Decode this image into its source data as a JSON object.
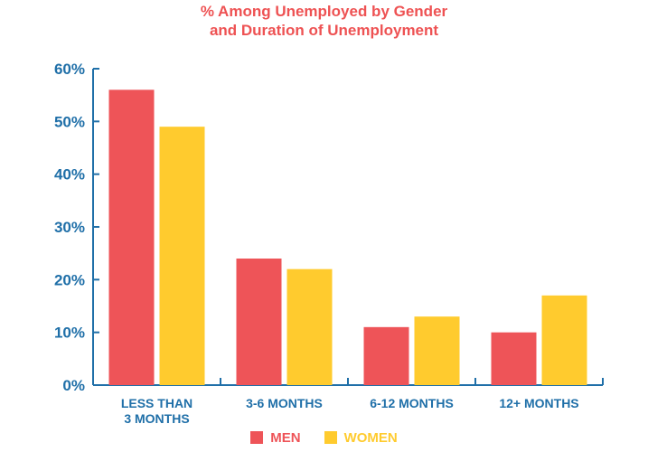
{
  "chart_data": {
    "type": "bar",
    "title": "% Among Unemployed by Gender and Duration of Unemployment",
    "title_lines": [
      "% Among Unemployed by Gender",
      "and Duration of Unemployment"
    ],
    "categories": [
      "LESS THAN 3 MONTHS",
      "3-6 MONTHS",
      "6-12 MONTHS",
      "12+ MONTHS"
    ],
    "category_lines": [
      [
        "LESS THAN",
        "3 MONTHS"
      ],
      [
        "3-6 MONTHS"
      ],
      [
        "6-12 MONTHS"
      ],
      [
        "12+ MONTHS"
      ]
    ],
    "series": [
      {
        "name": "MEN",
        "color": "#ee5458",
        "values": [
          56,
          24,
          11,
          10
        ]
      },
      {
        "name": "WOMEN",
        "color": "#ffcb2e",
        "values": [
          49,
          22,
          13,
          17
        ]
      }
    ],
    "ylim": [
      0,
      60
    ],
    "yticks": [
      "0%",
      "10%",
      "20%",
      "30%",
      "40%",
      "50%",
      "60%"
    ],
    "ytick_values": [
      0,
      10,
      20,
      30,
      40,
      50,
      60
    ],
    "xlabel": "",
    "ylabel": "",
    "grid": false,
    "legend_position": "bottom-center",
    "axis_color": "#1f6fa8",
    "title_color": "#ee5253"
  },
  "legend": {
    "men_label": "MEN",
    "women_label": "WOMEN"
  }
}
